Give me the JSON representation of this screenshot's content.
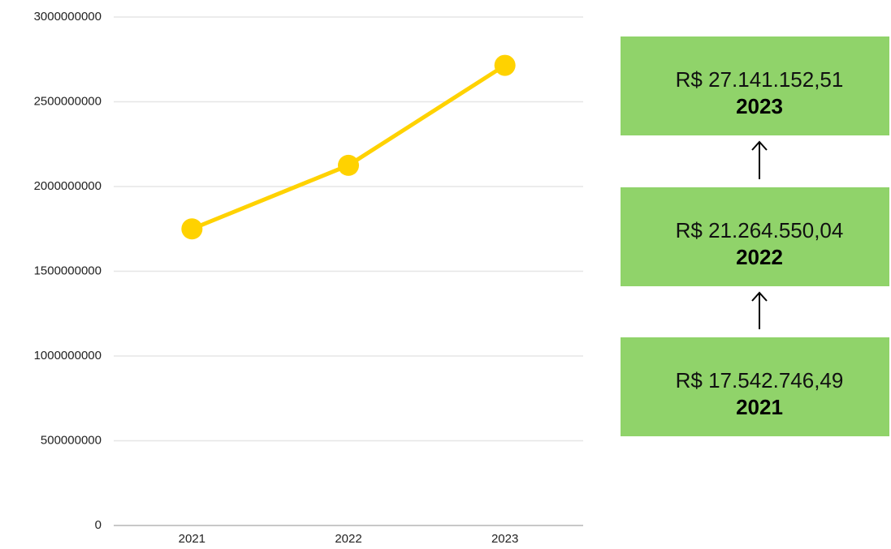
{
  "chart_data": {
    "type": "line",
    "categories": [
      "2021",
      "2022",
      "2023"
    ],
    "series": [
      {
        "color": "#ffd200",
        "values": [
          1750000000,
          2125000000,
          2715000000
        ]
      }
    ],
    "ylim": [
      0,
      3000000000
    ],
    "yticks": [
      0,
      500000000,
      1000000000,
      1500000000,
      2000000000,
      2500000000,
      3000000000
    ],
    "grid": true
  },
  "boxes": [
    {
      "amount": "R$ 27.141.152,51",
      "year": "2023"
    },
    {
      "amount": "R$ 21.264.550,04",
      "year": "2022"
    },
    {
      "amount": "R$ 17.542.746,49",
      "year": "2021"
    }
  ]
}
